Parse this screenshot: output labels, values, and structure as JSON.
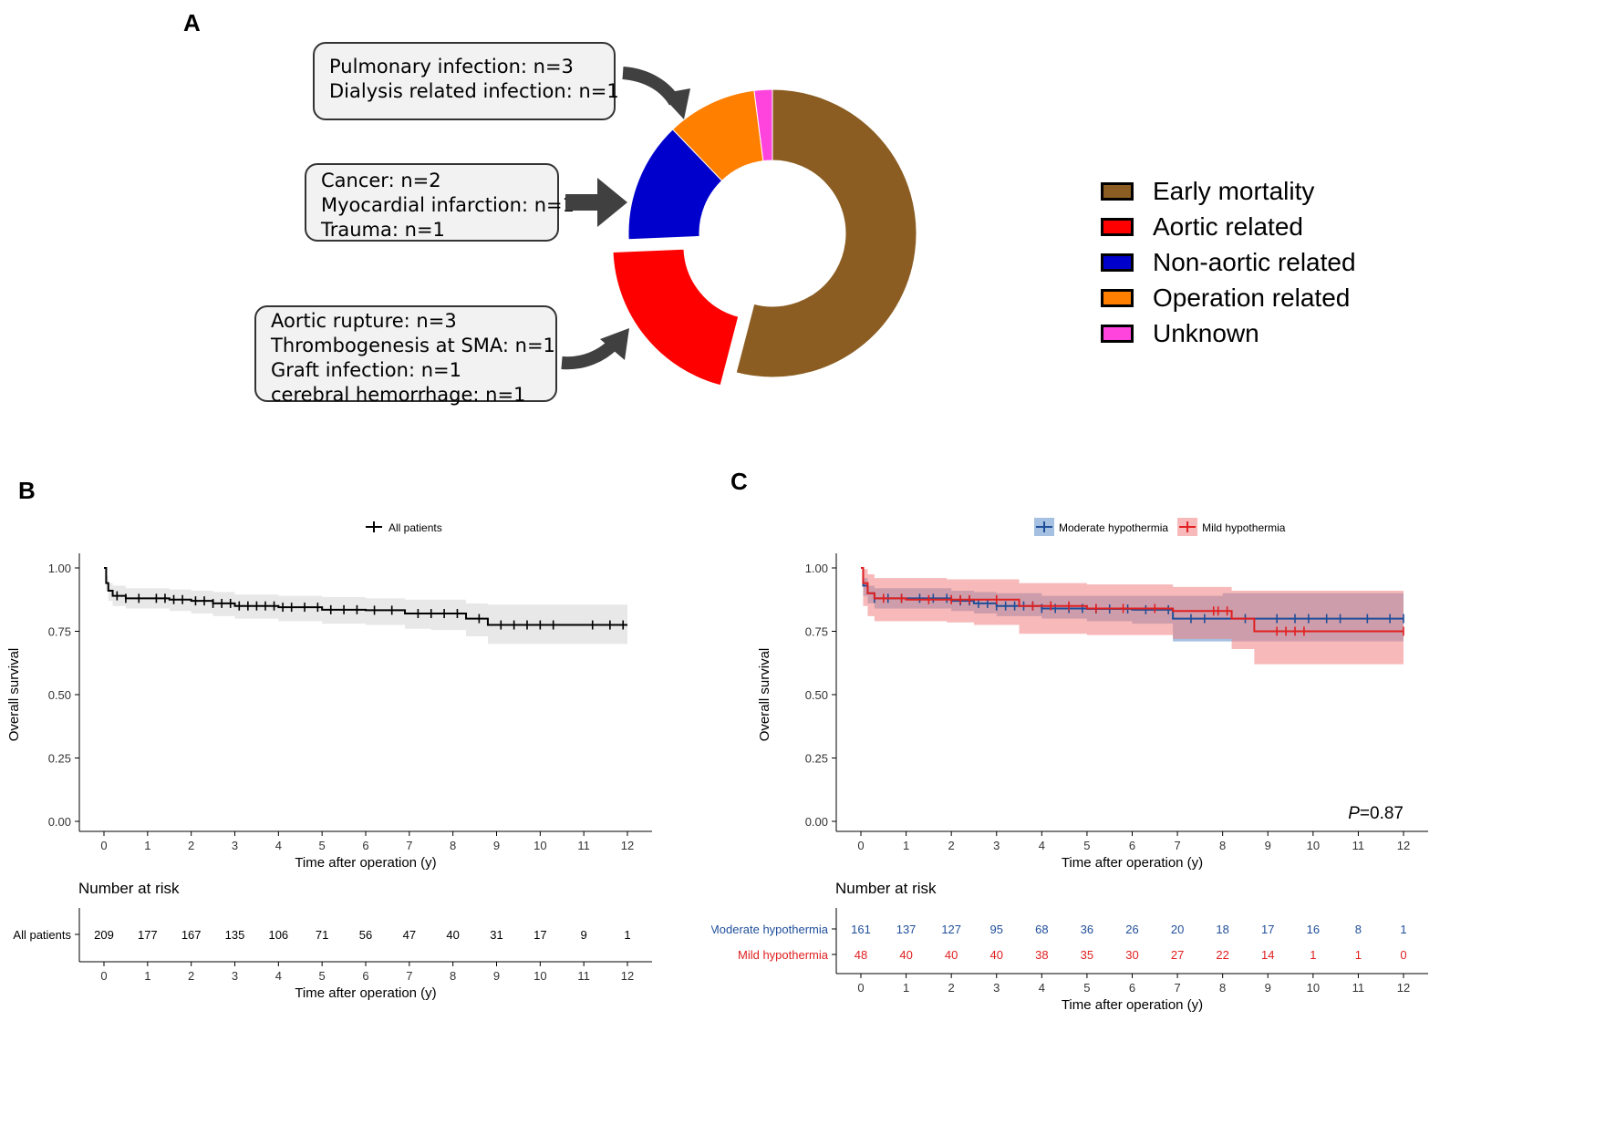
{
  "panels": {
    "a": {
      "letter": "A",
      "callouts": [
        {
          "lines": [
            "Pulmonary infection: n=3",
            "Dialysis related infection: n=1"
          ]
        },
        {
          "lines": [
            "Cancer: n=2",
            "Myocardial infarction: n=1",
            "Trauma: n=1"
          ]
        },
        {
          "lines": [
            "Aortic rupture: n=3",
            "Thrombogenesis at SMA: n=1",
            "Graft infection: n=1",
            "cerebral hemorrhage: n=1"
          ]
        }
      ]
    },
    "b": {
      "letter": "B"
    },
    "c": {
      "letter": "C"
    }
  },
  "chart_data": [
    {
      "type": "pie",
      "variant": "donut",
      "legend_position": "right",
      "categories": [
        "Early mortality",
        "Aortic related",
        "Non-aortic related",
        "Operation related",
        "Unknown"
      ],
      "values": [
        16,
        6,
        4,
        3,
        0.6
      ],
      "colors": [
        "#8b5d22",
        "#ff0000",
        "#0000cc",
        "#ff7f00",
        "#ff44dd"
      ],
      "exploded": "Aortic related"
    },
    {
      "type": "line",
      "subtype": "kaplan-meier",
      "legend": [
        "All patients"
      ],
      "legend_position": "top",
      "xlabel": "Time after operation (y)",
      "ylabel": "Overall survival",
      "xlim": [
        0,
        12
      ],
      "ylim": [
        0,
        1
      ],
      "xticks": [
        "0",
        "1",
        "2",
        "3",
        "4",
        "5",
        "6",
        "7",
        "8",
        "9",
        "10",
        "11",
        "12"
      ],
      "yticks": [
        "0.00",
        "0.25",
        "0.50",
        "0.75",
        "1.00"
      ],
      "series": [
        {
          "name": "All patients",
          "color": "#000000",
          "ci_color": "#e6e6e6",
          "x": [
            0,
            0.05,
            0.1,
            0.2,
            0.5,
            1.0,
            1.5,
            2.0,
            2.5,
            3.0,
            4.0,
            5.0,
            6.0,
            6.9,
            7.5,
            8.3,
            8.8,
            12
          ],
          "y": [
            1.0,
            0.94,
            0.91,
            0.89,
            0.88,
            0.88,
            0.875,
            0.87,
            0.86,
            0.85,
            0.845,
            0.835,
            0.833,
            0.82,
            0.82,
            0.8,
            0.775,
            0.775
          ],
          "ci_lower": [
            1.0,
            0.91,
            0.87,
            0.85,
            0.84,
            0.84,
            0.83,
            0.82,
            0.81,
            0.8,
            0.79,
            0.78,
            0.775,
            0.76,
            0.755,
            0.73,
            0.7,
            0.7
          ],
          "ci_upper": [
            1.0,
            0.97,
            0.94,
            0.93,
            0.92,
            0.92,
            0.915,
            0.91,
            0.905,
            0.895,
            0.89,
            0.885,
            0.88,
            0.875,
            0.875,
            0.86,
            0.855,
            0.855
          ],
          "censor_x": [
            0.3,
            0.5,
            0.8,
            1.2,
            1.4,
            1.6,
            1.8,
            2.1,
            2.3,
            2.5,
            2.7,
            2.9,
            3.1,
            3.3,
            3.5,
            3.7,
            3.9,
            4.1,
            4.3,
            4.6,
            4.9,
            5.2,
            5.5,
            5.8,
            6.2,
            6.6,
            7.2,
            7.5,
            7.8,
            8.1,
            8.6,
            9.1,
            9.4,
            9.7,
            10.0,
            10.3,
            11.2,
            11.6,
            11.9
          ]
        }
      ],
      "risk_table": {
        "title": "Number at risk",
        "xlabel": "Time after operation (y)",
        "rows": [
          {
            "label": "All patients",
            "color": "#000000",
            "values": [
              "209",
              "177",
              "167",
              "135",
              "106",
              "71",
              "56",
              "47",
              "40",
              "31",
              "17",
              "9",
              "1"
            ]
          }
        ]
      }
    },
    {
      "type": "line",
      "subtype": "kaplan-meier",
      "legend": [
        "Moderate hypothermia",
        "Mild hypothermia"
      ],
      "legend_position": "top",
      "xlabel": "Time after operation (y)",
      "ylabel": "Overall survival",
      "xlim": [
        0,
        12
      ],
      "ylim": [
        0,
        1
      ],
      "xticks": [
        "0",
        "1",
        "2",
        "3",
        "4",
        "5",
        "6",
        "7",
        "8",
        "9",
        "10",
        "11",
        "12"
      ],
      "yticks": [
        "0.00",
        "0.25",
        "0.50",
        "0.75",
        "1.00"
      ],
      "annotation": {
        "italic": "P",
        "text": "=0.87"
      },
      "series": [
        {
          "name": "Moderate hypothermia",
          "color": "#1f4e99",
          "ci_color": "#5b8cc9",
          "x": [
            0,
            0.05,
            0.15,
            0.3,
            1.0,
            2.0,
            2.5,
            3.0,
            4.0,
            5.0,
            6.0,
            6.9,
            8.0,
            12
          ],
          "y": [
            1.0,
            0.93,
            0.9,
            0.88,
            0.88,
            0.87,
            0.86,
            0.85,
            0.84,
            0.838,
            0.835,
            0.8,
            0.8,
            0.8
          ],
          "ci_lower": [
            1.0,
            0.89,
            0.86,
            0.84,
            0.84,
            0.83,
            0.82,
            0.81,
            0.8,
            0.79,
            0.78,
            0.71,
            0.71,
            0.71
          ],
          "ci_upper": [
            1.0,
            0.96,
            0.93,
            0.92,
            0.92,
            0.91,
            0.905,
            0.9,
            0.89,
            0.89,
            0.89,
            0.89,
            0.9,
            0.9
          ],
          "censor_x": [
            0.3,
            0.6,
            0.9,
            1.3,
            1.6,
            1.9,
            2.2,
            2.4,
            2.6,
            2.8,
            3.0,
            3.2,
            3.4,
            3.6,
            3.8,
            4.0,
            4.3,
            4.6,
            4.9,
            5.2,
            5.5,
            5.9,
            6.3,
            6.8,
            7.3,
            7.6,
            8.5,
            9.2,
            9.6,
            9.9,
            10.3,
            10.6,
            11.2,
            11.7,
            12.0
          ]
        },
        {
          "name": "Mild hypothermia",
          "color": "#e02020",
          "ci_color": "#f08080",
          "x": [
            0,
            0.05,
            0.15,
            0.3,
            1.0,
            1.9,
            2.5,
            3.5,
            5.0,
            6.9,
            8.2,
            8.7,
            12
          ],
          "y": [
            1.0,
            0.94,
            0.9,
            0.88,
            0.875,
            0.875,
            0.875,
            0.85,
            0.84,
            0.83,
            0.8,
            0.75,
            0.75
          ],
          "ci_lower": [
            1.0,
            0.85,
            0.81,
            0.79,
            0.79,
            0.785,
            0.775,
            0.74,
            0.735,
            0.72,
            0.68,
            0.62,
            0.62
          ],
          "ci_upper": [
            1.0,
            0.995,
            0.975,
            0.96,
            0.96,
            0.955,
            0.955,
            0.94,
            0.935,
            0.925,
            0.91,
            0.91,
            0.91
          ],
          "censor_x": [
            0.5,
            0.9,
            1.5,
            2.0,
            2.2,
            2.4,
            3.0,
            3.8,
            4.2,
            4.6,
            5.2,
            5.8,
            6.5,
            7.8,
            7.9,
            8.1,
            9.2,
            9.4,
            9.6,
            9.8,
            12.0
          ]
        }
      ],
      "risk_table": {
        "title": "Number at risk",
        "xlabel": "Time after operation (y)",
        "rows": [
          {
            "label": "Moderate hypothermia",
            "color": "#1f4e99",
            "values": [
              "161",
              "137",
              "127",
              "95",
              "68",
              "36",
              "26",
              "20",
              "18",
              "17",
              "16",
              "8",
              "1"
            ]
          },
          {
            "label": "Mild hypothermia",
            "color": "#e02020",
            "values": [
              "48",
              "40",
              "40",
              "40",
              "38",
              "35",
              "30",
              "27",
              "22",
              "14",
              "1",
              "1",
              "0"
            ]
          }
        ]
      }
    }
  ]
}
